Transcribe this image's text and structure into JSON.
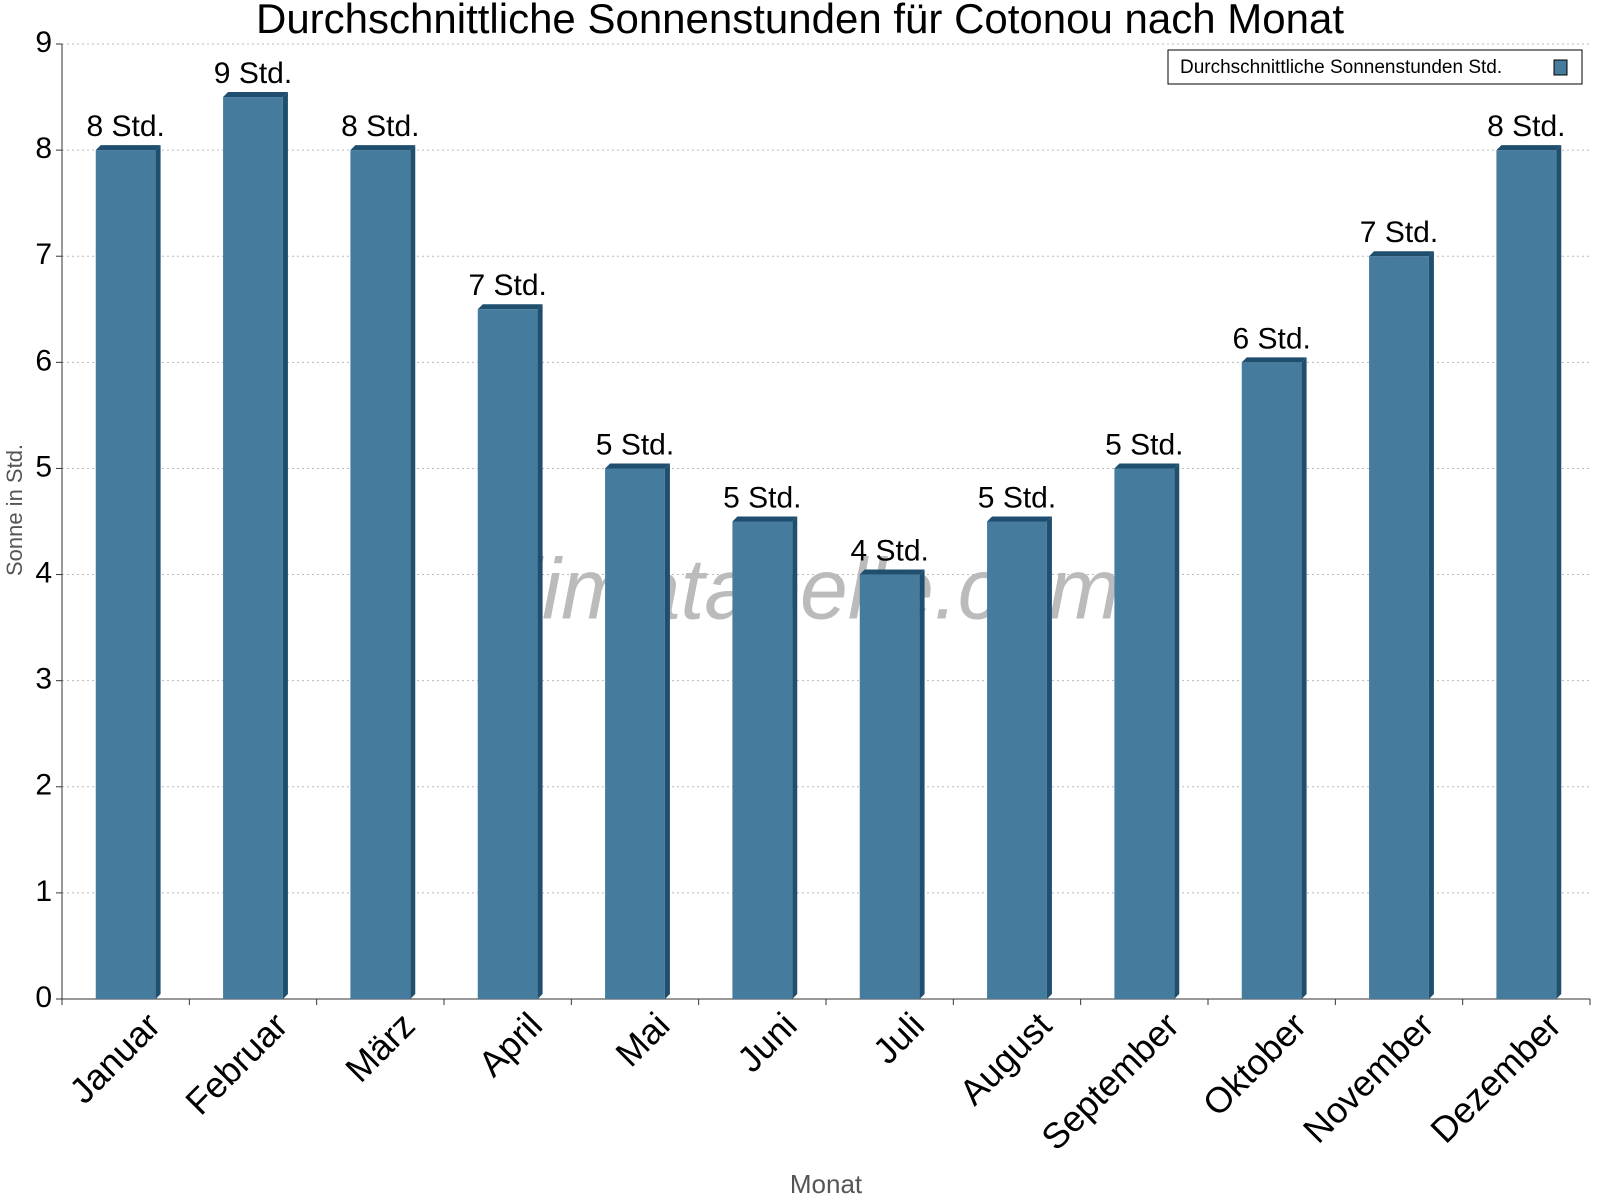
{
  "chart_data": {
    "type": "bar",
    "title": "Durchschnittliche Sonnenstunden für Cotonou nach Monat",
    "x_label": "Monat",
    "y_label": "Sonne in Std.",
    "watermark": "klimatabelle.com",
    "categories": [
      "Januar",
      "Februar",
      "März",
      "April",
      "Mai",
      "Juni",
      "Juli",
      "August",
      "September",
      "Oktober",
      "November",
      "Dezember"
    ],
    "series": [
      {
        "name": "Durchschnittliche Sonnenstunden Std.",
        "color": "#457b9d",
        "values": [
          8,
          8.5,
          8,
          6.5,
          5,
          4.5,
          4,
          4.5,
          5,
          6,
          7,
          8
        ],
        "value_labels": [
          "8 Std.",
          "9 Std.",
          "8 Std.",
          "7 Std.",
          "5 Std.",
          "5 Std.",
          "4 Std.",
          "5 Std.",
          "5 Std.",
          "6 Std.",
          "7 Std.",
          "8 Std."
        ]
      }
    ],
    "ylim": [
      0,
      9
    ],
    "yticks": [
      0,
      1,
      2,
      3,
      4,
      5,
      6,
      7,
      8,
      9
    ],
    "grid": true,
    "legend": "top-right"
  }
}
